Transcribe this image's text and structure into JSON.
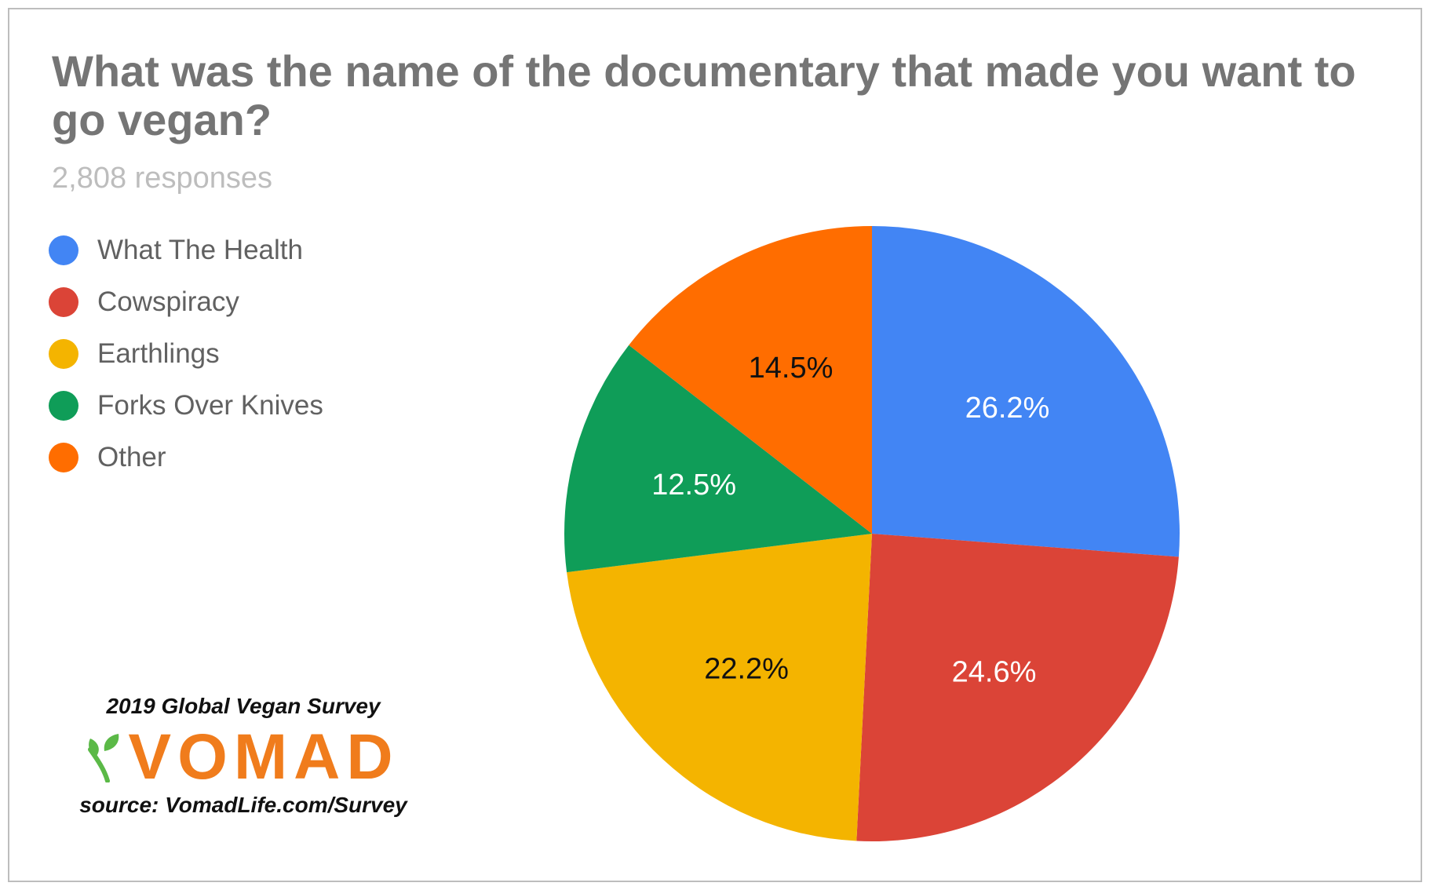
{
  "title": "What was the name of the documentary that made you want to go vegan?",
  "subtitle": "2,808 responses",
  "branding": {
    "survey_name": "2019 Global Vegan Survey",
    "logo_text": "VOMAD",
    "source": "source: VomadLife.com/Survey",
    "logo_colors": {
      "text": "#F07C1C",
      "leaf": "#5BB947"
    }
  },
  "chart_data": {
    "type": "pie",
    "categories": [
      "What The Health",
      "Cowspiracy",
      "Earthlings",
      "Forks Over Knives",
      "Other"
    ],
    "values": [
      26.2,
      24.6,
      22.2,
      12.5,
      14.5
    ],
    "labels": [
      "26.2%",
      "24.6%",
      "22.2%",
      "12.5%",
      "14.5%"
    ],
    "colors": [
      "#4285F4",
      "#DB4437",
      "#F4B400",
      "#0F9D58",
      "#FF6D00"
    ],
    "label_colors": [
      "#ffffff",
      "#ffffff",
      "#111111",
      "#ffffff",
      "#111111"
    ],
    "start_angle_deg": 0,
    "direction": "clockwise",
    "legend_position": "left"
  }
}
